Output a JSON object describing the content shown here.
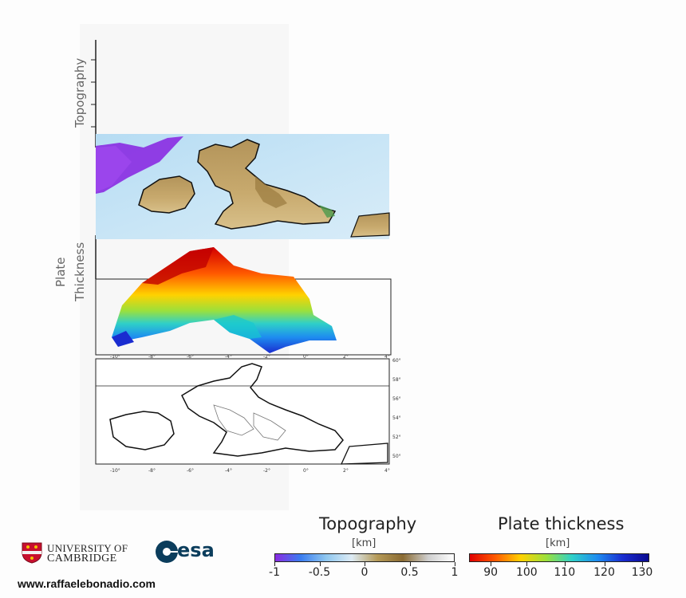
{
  "panels": {
    "topography_axis_label": "Topography",
    "plate_axis_label_line1": "Plate",
    "plate_axis_label_line2": "Thickness",
    "lon_ticks": [
      "-10°",
      "-8°",
      "-6°",
      "-4°",
      "-2°",
      "0°",
      "2°",
      "4°"
    ],
    "lat_ticks": [
      "60°",
      "58°",
      "56°",
      "54°",
      "52°",
      "50°"
    ]
  },
  "legend": {
    "topography": {
      "title": "Topography",
      "unit": "[km]",
      "ticks": [
        "-1",
        "-0.5",
        "0",
        "0.5",
        "1"
      ],
      "colors": [
        "#8a2be2",
        "#3a7df0",
        "#8fc7ef",
        "#ddebf4",
        "#b59a58",
        "#8a6b33",
        "#cfcfcf",
        "#ffffff"
      ]
    },
    "plate_thickness": {
      "title": "Plate thickness",
      "unit": "[km]",
      "ticks": [
        "90",
        "100",
        "110",
        "120",
        "130"
      ],
      "colors": [
        "#e00000",
        "#ff5a00",
        "#ffd200",
        "#9be03c",
        "#2fd0c8",
        "#1e8cf0",
        "#1a2cd0",
        "#0a0a90"
      ]
    }
  },
  "logos": {
    "cambridge_line1": "UNIVERSITY OF",
    "cambridge_line2": "CAMBRIDGE",
    "esa": "esa"
  },
  "credit_url": "www.raffaelebonadio.com"
}
